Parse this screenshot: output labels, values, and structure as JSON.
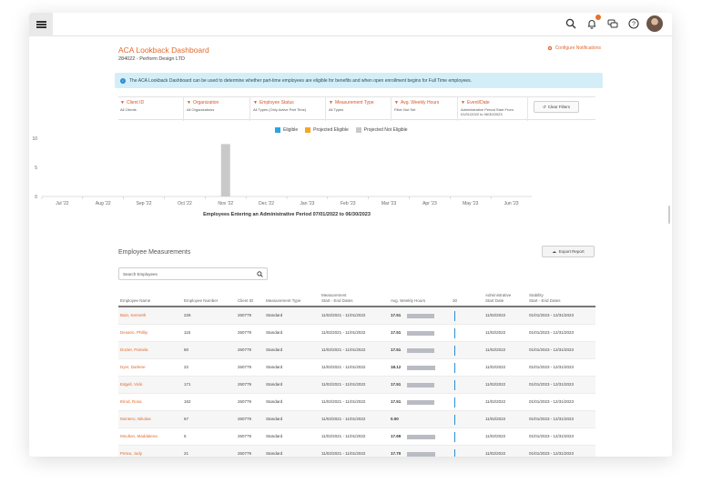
{
  "header": {
    "title": "ACA Lookback Dashboard",
    "subtitle": "284022 - Perform Design LTD",
    "configure_label": "Configure Notifications",
    "info_text": "The ACA Lookback Dashboard can be used to determine whether part-time employees are eligible for benefits and when open enrollment begins for Full Time employees."
  },
  "colors": {
    "accent": "#e06a2c",
    "eligible": "#2ea3e0",
    "projected_eligible": "#f5a623",
    "projected_not_eligible": "#c9c9c9"
  },
  "icons": [
    "menu-icon",
    "search-icon",
    "bell-icon",
    "chat-icon",
    "help-icon",
    "avatar"
  ],
  "filters": [
    {
      "label": "Client ID",
      "value": "All Clients"
    },
    {
      "label": "Organization",
      "value": "All Organizations"
    },
    {
      "label": "Employee Status",
      "value": "All Types (Only Active Part Time)"
    },
    {
      "label": "Measurement Type",
      "value": "All Types"
    },
    {
      "label": "Avg. Weekly Hours",
      "value": "Filter Not Set"
    },
    {
      "label": "Event/Date",
      "value": "Administrative Period Start From 01/01/2022 to 06/30/2023"
    }
  ],
  "clear_filters_label": "Clear Filters",
  "chart_data": {
    "type": "bar",
    "legend": [
      "Eligible",
      "Projected Eligible",
      "Projected Not Eligible"
    ],
    "legend_position": "top",
    "categories": [
      "Jul '22",
      "Aug '22",
      "Sep '22",
      "Oct '22",
      "Nov '22",
      "Dec '22",
      "Jan '23",
      "Feb '23",
      "Mar '23",
      "Apr '23",
      "May '23",
      "Jun '23"
    ],
    "yticks": [
      "0",
      "5",
      "10"
    ],
    "ylim": [
      0,
      10
    ],
    "series": [
      {
        "name": "Eligible",
        "values": [
          0,
          0,
          0,
          0,
          0,
          0,
          0,
          0,
          0,
          0,
          0,
          0
        ]
      },
      {
        "name": "Projected Eligible",
        "values": [
          0,
          0,
          0,
          0,
          0,
          0,
          0,
          0,
          0,
          0,
          0,
          0
        ]
      },
      {
        "name": "Projected Not Eligible",
        "values": [
          0,
          0,
          0,
          0,
          9,
          0,
          0,
          0,
          0,
          0,
          0,
          0
        ]
      }
    ],
    "xlabel": "Employees Entering an Administrative Period 07/01/2022 to 06/30/2023"
  },
  "measurements": {
    "title": "Employee Measurements",
    "export_label": "Export Report",
    "search_placeholder": "Search Employees",
    "columns": {
      "name": "Employee Name",
      "number": "Employee Number",
      "client": "Client ID",
      "type": "Measurement Type",
      "measurement_top": "Measurement",
      "measurement_bottom": "Start - End Dates",
      "hours": "Avg. Weekly Hours",
      "threshold": "30",
      "admin_top": "Administrative",
      "admin_bottom": "Start Date",
      "stability_top": "Stability",
      "stability_bottom": "Start - End Dates"
    },
    "rows": [
      {
        "name": "Bain, Kenneth",
        "number": "226",
        "client": "260779",
        "type": "Standard",
        "measurement": "11/02/2021 - 11/01/2022",
        "hours": "17.51",
        "admin": "11/02/2022",
        "stability": "01/01/2023 - 12/31/2023"
      },
      {
        "name": "Desario, Phillip",
        "number": "115",
        "client": "260779",
        "type": "Standard",
        "measurement": "11/02/2021 - 11/01/2022",
        "hours": "17.51",
        "admin": "11/02/2022",
        "stability": "01/01/2023 - 12/31/2023"
      },
      {
        "name": "Dozier, Pamela",
        "number": "60",
        "client": "260779",
        "type": "Standard",
        "measurement": "11/02/2021 - 11/01/2022",
        "hours": "17.51",
        "admin": "11/02/2022",
        "stability": "01/01/2023 - 12/31/2023"
      },
      {
        "name": "Dyer, Darlene",
        "number": "22",
        "client": "260779",
        "type": "Standard",
        "measurement": "11/02/2021 - 11/01/2022",
        "hours": "18.12",
        "admin": "11/02/2022",
        "stability": "01/01/2023 - 12/31/2023"
      },
      {
        "name": "Edgell, Vicki",
        "number": "171",
        "client": "260779",
        "type": "Standard",
        "measurement": "11/02/2021 - 11/01/2022",
        "hours": "17.51",
        "admin": "11/02/2022",
        "stability": "01/01/2023 - 12/31/2023"
      },
      {
        "name": "Elrod, Rosa",
        "number": "162",
        "client": "260779",
        "type": "Standard",
        "measurement": "11/02/2021 - 11/01/2022",
        "hours": "17.51",
        "admin": "11/02/2022",
        "stability": "01/01/2023 - 12/31/2023"
      },
      {
        "name": "Montero, Nikolas",
        "number": "67",
        "client": "260779",
        "type": "Standard",
        "measurement": "11/02/2021 - 11/01/2022",
        "hours": "0.00",
        "admin": "11/02/2022",
        "stability": "01/01/2023 - 12/31/2023"
      },
      {
        "name": "Moulton, Maddalena",
        "number": "5",
        "client": "260779",
        "type": "Standard",
        "measurement": "11/02/2021 - 11/01/2022",
        "hours": "17.69",
        "admin": "11/02/2022",
        "stability": "01/01/2023 - 12/31/2023"
      },
      {
        "name": "Perea, Judy",
        "number": "21",
        "client": "260779",
        "type": "Standard",
        "measurement": "11/02/2021 - 11/01/2022",
        "hours": "17.70",
        "admin": "11/02/2022",
        "stability": "01/01/2023 - 12/31/2023"
      }
    ]
  }
}
